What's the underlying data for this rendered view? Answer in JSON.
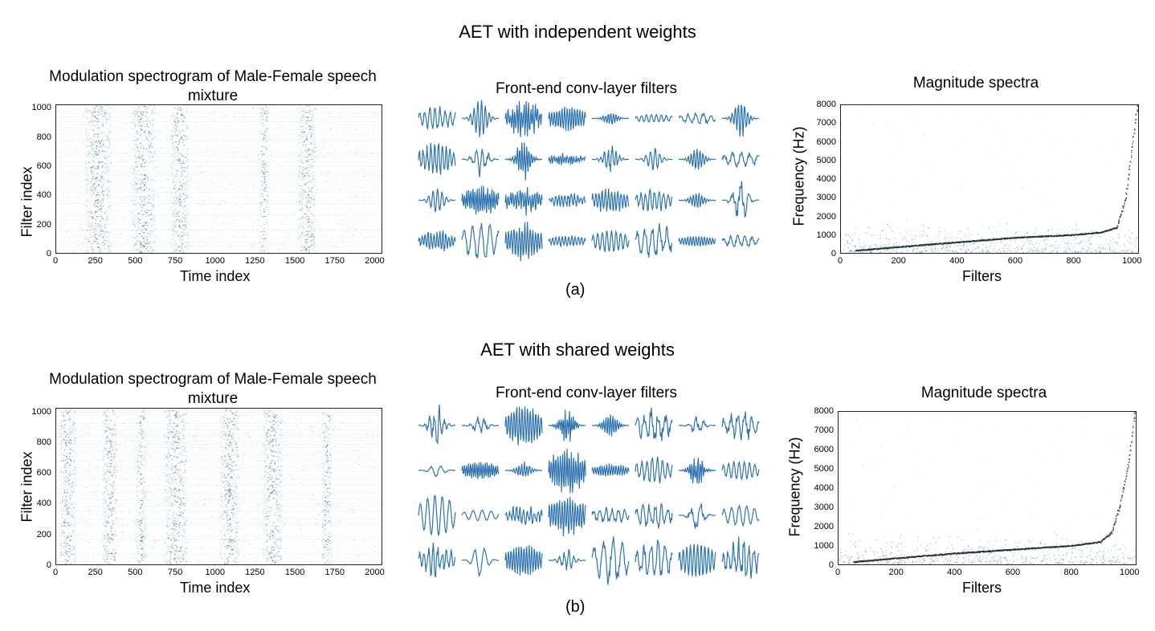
{
  "figure": {
    "panels": [
      {
        "id": "a",
        "title": "AET with independent weights",
        "caption": "(a)",
        "spectrogram": {
          "title": "Modulation spectrogram of Male-Female speech mixture",
          "xlabel": "Time index",
          "ylabel": "Filter index",
          "xticks": [
            "0",
            "250",
            "500",
            "750",
            "1000",
            "1250",
            "1500",
            "1750",
            "2000"
          ],
          "yticks": [
            "0",
            "200",
            "400",
            "600",
            "800",
            "1000"
          ]
        },
        "filters": {
          "title": "Front-end conv-layer filters"
        },
        "spectra": {
          "title": "Magnitude spectra",
          "xlabel": "Filters",
          "ylabel": "Frequency (Hz)",
          "xticks": [
            "0",
            "200",
            "400",
            "600",
            "800",
            "1000"
          ],
          "yticks": [
            "0",
            "1000",
            "2000",
            "3000",
            "4000",
            "5000",
            "6000",
            "7000",
            "8000"
          ]
        }
      },
      {
        "id": "b",
        "title": "AET with shared weights",
        "caption": "(b)",
        "spectrogram": {
          "title": "Modulation spectrogram of Male-Female speech mixture",
          "xlabel": "Time index",
          "ylabel": "Filter index",
          "xticks": [
            "0",
            "250",
            "500",
            "750",
            "1000",
            "1250",
            "1500",
            "1750",
            "2000"
          ],
          "yticks": [
            "0",
            "200",
            "400",
            "600",
            "800",
            "1000"
          ]
        },
        "filters": {
          "title": "Front-end conv-layer filters"
        },
        "spectra": {
          "title": "Magnitude spectra",
          "xlabel": "Filters",
          "ylabel": "Frequency (Hz)",
          "xticks": [
            "0",
            "200",
            "400",
            "600",
            "800",
            "1000"
          ],
          "yticks": [
            "0",
            "1000",
            "2000",
            "3000",
            "4000",
            "5000",
            "6000",
            "7000",
            "8000"
          ]
        }
      }
    ]
  },
  "chart_data": [
    {
      "type": "heatmap",
      "title": "Modulation spectrogram of Male-Female speech mixture",
      "xlabel": "Time index",
      "ylabel": "Filter index",
      "xlim": [
        0,
        2048
      ],
      "ylim": [
        0,
        1024
      ],
      "energy_bands_time_index": [
        [
          180,
          340
        ],
        [
          470,
          620
        ],
        [
          720,
          830
        ],
        [
          1280,
          1330
        ],
        [
          1520,
          1630
        ]
      ],
      "colormap_color": "#1f5a6b"
    },
    {
      "type": "line",
      "title": "Front-end conv-layer filters",
      "grid": [
        4,
        8
      ],
      "series_color": "#2f74b0"
    },
    {
      "type": "scatter",
      "title": "Magnitude spectra",
      "xlabel": "Filters",
      "ylabel": "Frequency (Hz)",
      "xlim": [
        0,
        1024
      ],
      "ylim": [
        0,
        8000
      ],
      "center_frequency_trend": {
        "x": [
          50,
          200,
          400,
          600,
          800,
          900,
          950,
          980,
          1000,
          1020
        ],
        "y": [
          150,
          350,
          600,
          850,
          1000,
          1150,
          1400,
          3000,
          5500,
          8000
        ]
      },
      "point_color": "#1f5a6b"
    },
    {
      "type": "heatmap",
      "title": "Modulation spectrogram of Male-Female speech mixture",
      "xlabel": "Time index",
      "ylabel": "Filter index",
      "xlim": [
        0,
        2048
      ],
      "ylim": [
        0,
        1024
      ],
      "energy_bands_time_index": [
        [
          20,
          120
        ],
        [
          290,
          380
        ],
        [
          500,
          560
        ],
        [
          680,
          820
        ],
        [
          1030,
          1150
        ],
        [
          1300,
          1420
        ],
        [
          1670,
          1730
        ]
      ],
      "colormap_color": "#1f5a6b"
    },
    {
      "type": "line",
      "title": "Front-end conv-layer filters",
      "grid": [
        4,
        8
      ],
      "series_color": "#2f74b0"
    },
    {
      "type": "scatter",
      "title": "Magnitude spectra",
      "xlabel": "Filters",
      "ylabel": "Frequency (Hz)",
      "xlim": [
        0,
        1024
      ],
      "ylim": [
        0,
        8000
      ],
      "center_frequency_trend": {
        "x": [
          50,
          200,
          400,
          600,
          800,
          900,
          940,
          970,
          1000,
          1020
        ],
        "y": [
          150,
          350,
          600,
          800,
          1000,
          1200,
          1700,
          3200,
          5500,
          8000
        ]
      },
      "point_color": "#1f5a6b"
    }
  ]
}
